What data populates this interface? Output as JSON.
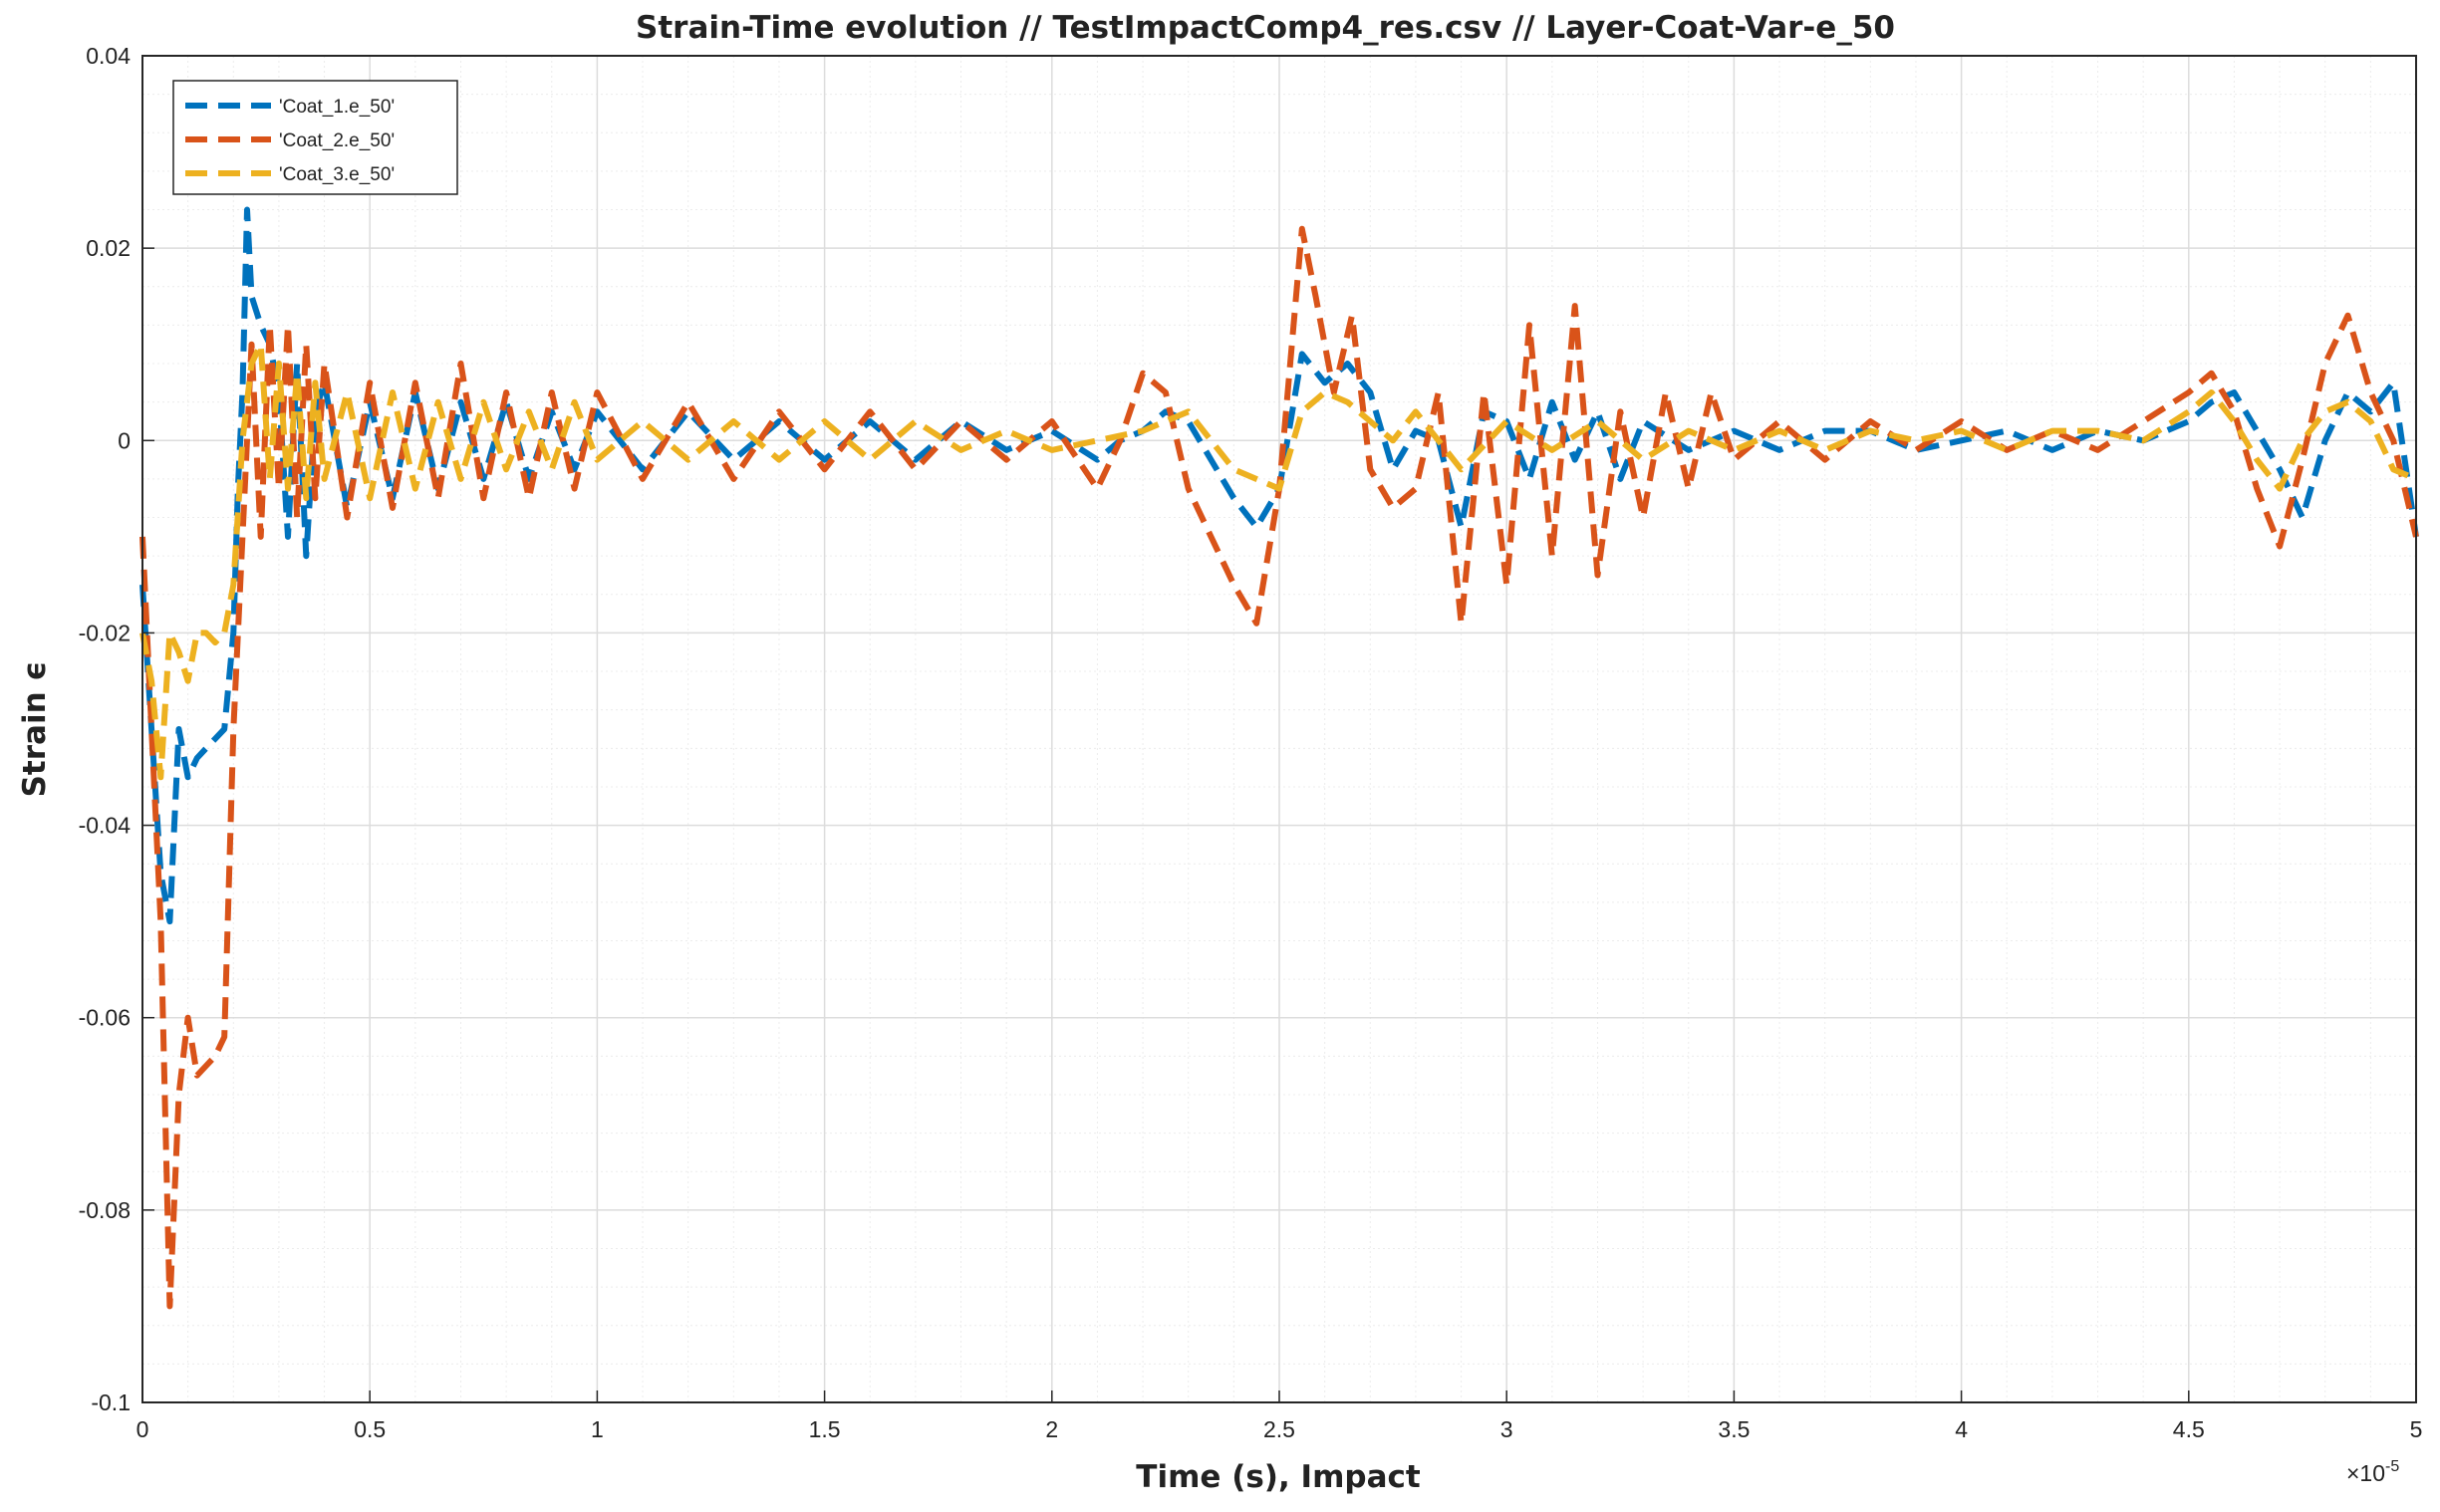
{
  "chart_data": {
    "type": "line",
    "title": "Strain-Time evolution  //  TestImpactComp4_res.csv // Layer-Coat-Var-e_50",
    "xlabel": "Time (s), Impact",
    "ylabel": "Strain ϵ",
    "x_exponent_label": "×10",
    "x_exponent_power": "-5",
    "xlim": [
      0,
      5
    ],
    "ylim": [
      -0.1,
      0.04
    ],
    "xticks": [
      0,
      0.5,
      1,
      1.5,
      2,
      2.5,
      3,
      3.5,
      4,
      4.5,
      5
    ],
    "xtick_labels": [
      "0",
      "0.5",
      "1",
      "1.5",
      "2",
      "2.5",
      "3",
      "3.5",
      "4",
      "4.5",
      "5"
    ],
    "yticks": [
      -0.1,
      -0.08,
      -0.06,
      -0.04,
      -0.02,
      0,
      0.02,
      0.04
    ],
    "ytick_labels": [
      "-0.1",
      "-0.08",
      "-0.06",
      "-0.04",
      "-0.02",
      "0",
      "0.02",
      "0.04"
    ],
    "grid": true,
    "minor_grid": true,
    "legend_position": "top-left",
    "series": [
      {
        "name": "'Coat_1.e_50'",
        "color": "#0072BD",
        "x": [
          0,
          0.02,
          0.04,
          0.06,
          0.08,
          0.1,
          0.12,
          0.14,
          0.16,
          0.18,
          0.2,
          0.21,
          0.22,
          0.23,
          0.24,
          0.26,
          0.28,
          0.3,
          0.32,
          0.34,
          0.36,
          0.38,
          0.4,
          0.45,
          0.5,
          0.55,
          0.6,
          0.65,
          0.7,
          0.75,
          0.8,
          0.85,
          0.9,
          0.95,
          1.0,
          1.1,
          1.2,
          1.3,
          1.4,
          1.5,
          1.6,
          1.7,
          1.8,
          1.9,
          2.0,
          2.1,
          2.15,
          2.2,
          2.25,
          2.3,
          2.35,
          2.4,
          2.45,
          2.5,
          2.55,
          2.6,
          2.65,
          2.7,
          2.75,
          2.8,
          2.85,
          2.9,
          2.95,
          3.0,
          3.05,
          3.1,
          3.15,
          3.2,
          3.25,
          3.3,
          3.4,
          3.5,
          3.6,
          3.7,
          3.8,
          3.9,
          4.0,
          4.1,
          4.2,
          4.3,
          4.4,
          4.5,
          4.55,
          4.6,
          4.65,
          4.7,
          4.75,
          4.8,
          4.85,
          4.9,
          4.95,
          5.0
        ],
        "y": [
          -0.015,
          -0.03,
          -0.045,
          -0.05,
          -0.03,
          -0.035,
          -0.033,
          -0.032,
          -0.031,
          -0.03,
          -0.02,
          -0.005,
          0.005,
          0.024,
          0.015,
          0.012,
          0.01,
          0.005,
          -0.01,
          0.008,
          -0.012,
          0.003,
          0.006,
          -0.007,
          0.004,
          -0.006,
          0.005,
          -0.005,
          0.004,
          -0.004,
          0.004,
          -0.004,
          0.003,
          -0.003,
          0.003,
          -0.003,
          0.003,
          -0.002,
          0.002,
          -0.002,
          0.002,
          -0.002,
          0.002,
          -0.001,
          0.001,
          -0.002,
          0.0,
          0.001,
          0.003,
          0.002,
          -0.002,
          -0.006,
          -0.009,
          -0.005,
          0.009,
          0.006,
          0.008,
          0.005,
          -0.003,
          0.001,
          0.0,
          -0.009,
          0.003,
          0.002,
          -0.004,
          0.004,
          -0.002,
          0.003,
          -0.004,
          0.002,
          -0.001,
          0.001,
          -0.001,
          0.001,
          0.001,
          -0.001,
          0.0,
          0.001,
          -0.001,
          0.001,
          0.0,
          0.002,
          0.004,
          0.005,
          0.001,
          -0.003,
          -0.008,
          0.0,
          0.005,
          0.003,
          0.006,
          -0.01
        ]
      },
      {
        "name": "'Coat_2.e_50'",
        "color": "#D95319",
        "x": [
          0,
          0.02,
          0.04,
          0.06,
          0.08,
          0.1,
          0.12,
          0.14,
          0.16,
          0.18,
          0.2,
          0.22,
          0.24,
          0.26,
          0.28,
          0.3,
          0.32,
          0.34,
          0.36,
          0.38,
          0.4,
          0.45,
          0.5,
          0.55,
          0.6,
          0.65,
          0.7,
          0.75,
          0.8,
          0.85,
          0.9,
          0.95,
          1.0,
          1.1,
          1.2,
          1.3,
          1.4,
          1.5,
          1.6,
          1.7,
          1.8,
          1.9,
          2.0,
          2.1,
          2.15,
          2.2,
          2.25,
          2.3,
          2.35,
          2.4,
          2.45,
          2.5,
          2.55,
          2.58,
          2.62,
          2.66,
          2.7,
          2.75,
          2.8,
          2.85,
          2.9,
          2.95,
          3.0,
          3.05,
          3.1,
          3.15,
          3.2,
          3.25,
          3.3,
          3.35,
          3.4,
          3.45,
          3.5,
          3.6,
          3.7,
          3.8,
          3.9,
          4.0,
          4.1,
          4.2,
          4.3,
          4.4,
          4.5,
          4.55,
          4.6,
          4.65,
          4.7,
          4.75,
          4.8,
          4.85,
          4.9,
          4.95,
          5.0
        ],
        "y": [
          -0.01,
          -0.03,
          -0.05,
          -0.09,
          -0.068,
          -0.06,
          -0.066,
          -0.065,
          -0.064,
          -0.062,
          -0.03,
          -0.01,
          0.01,
          -0.01,
          0.012,
          -0.005,
          0.012,
          -0.008,
          0.01,
          -0.006,
          0.008,
          -0.008,
          0.006,
          -0.007,
          0.006,
          -0.006,
          0.008,
          -0.006,
          0.005,
          -0.006,
          0.005,
          -0.005,
          0.005,
          -0.004,
          0.004,
          -0.004,
          0.003,
          -0.003,
          0.003,
          -0.003,
          0.002,
          -0.002,
          0.002,
          -0.005,
          0.0,
          0.007,
          0.005,
          -0.005,
          -0.01,
          -0.015,
          -0.019,
          -0.005,
          0.022,
          0.015,
          0.005,
          0.013,
          -0.003,
          -0.007,
          -0.005,
          0.005,
          -0.019,
          0.005,
          -0.015,
          0.012,
          -0.012,
          0.014,
          -0.014,
          0.003,
          -0.008,
          0.005,
          -0.005,
          0.005,
          -0.002,
          0.002,
          -0.002,
          0.002,
          -0.001,
          0.002,
          -0.001,
          0.001,
          -0.001,
          0.002,
          0.005,
          0.007,
          0.003,
          -0.005,
          -0.011,
          -0.002,
          0.008,
          0.013,
          0.005,
          0.0,
          -0.01
        ]
      },
      {
        "name": "'Coat_3.e_50'",
        "color": "#EDB120",
        "x": [
          0,
          0.02,
          0.04,
          0.06,
          0.08,
          0.1,
          0.12,
          0.14,
          0.16,
          0.18,
          0.2,
          0.22,
          0.24,
          0.26,
          0.28,
          0.3,
          0.32,
          0.34,
          0.36,
          0.38,
          0.4,
          0.45,
          0.5,
          0.55,
          0.6,
          0.65,
          0.7,
          0.75,
          0.8,
          0.85,
          0.9,
          0.95,
          1.0,
          1.1,
          1.2,
          1.3,
          1.4,
          1.5,
          1.6,
          1.7,
          1.8,
          1.9,
          2.0,
          2.1,
          2.2,
          2.3,
          2.4,
          2.5,
          2.55,
          2.6,
          2.65,
          2.7,
          2.75,
          2.8,
          2.9,
          3.0,
          3.1,
          3.2,
          3.3,
          3.4,
          3.5,
          3.6,
          3.7,
          3.8,
          3.9,
          4.0,
          4.1,
          4.2,
          4.3,
          4.4,
          4.5,
          4.55,
          4.6,
          4.65,
          4.7,
          4.75,
          4.8,
          4.85,
          4.9,
          4.95,
          5.0
        ],
        "y": [
          -0.02,
          -0.025,
          -0.035,
          -0.02,
          -0.022,
          -0.025,
          -0.02,
          -0.02,
          -0.021,
          -0.02,
          -0.015,
          0.0,
          0.008,
          0.01,
          -0.004,
          0.008,
          -0.005,
          0.007,
          -0.006,
          0.006,
          -0.004,
          0.005,
          -0.006,
          0.005,
          -0.005,
          0.004,
          -0.004,
          0.004,
          -0.003,
          0.003,
          -0.003,
          0.004,
          -0.002,
          0.002,
          -0.002,
          0.002,
          -0.002,
          0.002,
          -0.002,
          0.002,
          -0.001,
          0.001,
          -0.001,
          0.0,
          0.001,
          0.003,
          -0.003,
          -0.005,
          0.003,
          0.005,
          0.004,
          0.002,
          0.0,
          0.003,
          -0.003,
          0.002,
          -0.001,
          0.002,
          -0.002,
          0.001,
          -0.001,
          0.001,
          -0.001,
          0.001,
          0.0,
          0.001,
          -0.001,
          0.001,
          0.001,
          0.0,
          0.003,
          0.005,
          0.002,
          -0.002,
          -0.005,
          0.0,
          0.003,
          0.004,
          0.002,
          -0.003,
          -0.004
        ]
      }
    ]
  }
}
